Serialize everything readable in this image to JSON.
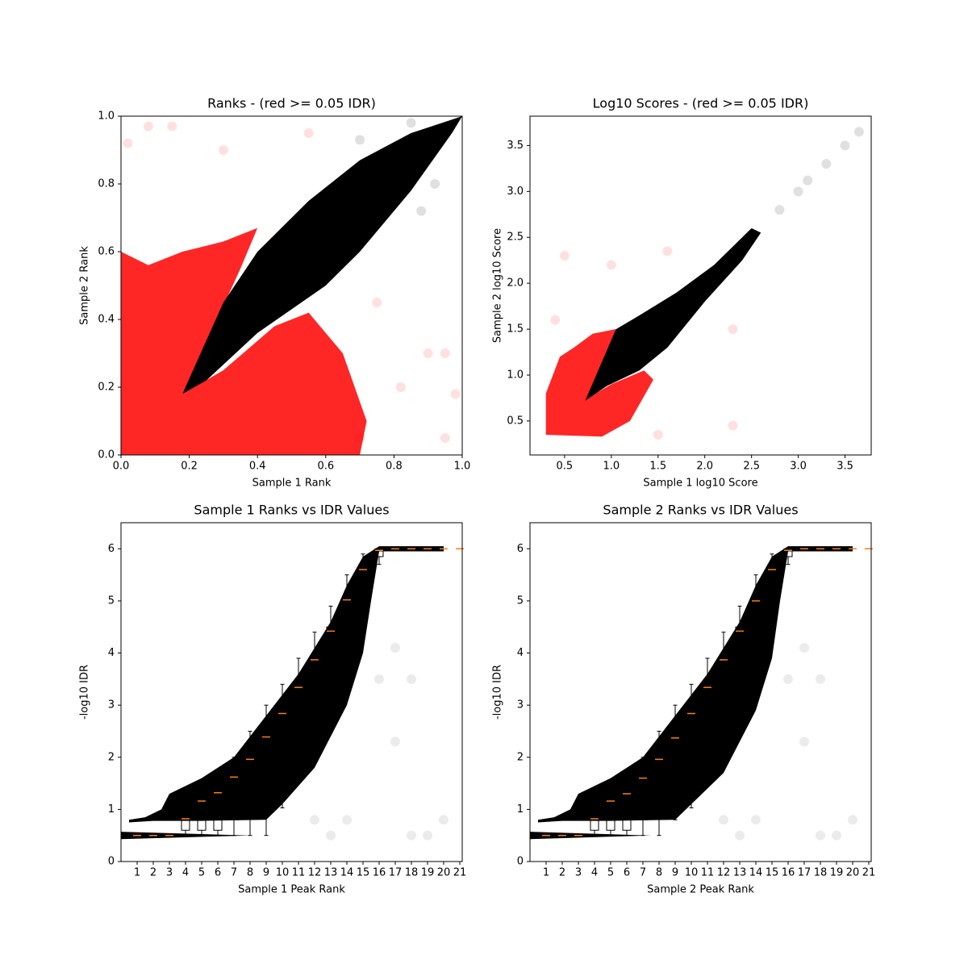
{
  "chart_data": [
    {
      "type": "scatter",
      "title": "Ranks - (red >= 0.05 IDR)",
      "xlabel": "Sample 1 Rank",
      "ylabel": "Sample 2 Rank",
      "xlim": [
        0,
        1
      ],
      "ylim": [
        0,
        1
      ],
      "xticks": [
        {
          "value": 0,
          "label": "0.0"
        },
        0.2,
        0.4,
        0.6,
        0.8,
        {
          "value": 1,
          "label": "1.0"
        }
      ],
      "yticks": [
        {
          "value": 0,
          "label": "0.0"
        },
        0.2,
        0.4,
        0.6,
        0.8,
        {
          "value": 1,
          "label": "1.0"
        }
      ],
      "regions": [
        {
          "color": "#ff0000",
          "alpha": 0.85,
          "x": [
            0,
            0,
            0.08,
            0.18,
            0.3,
            0.4,
            0.35,
            0.25,
            0.18,
            0.3,
            0.45,
            0.55,
            0.65,
            0.72,
            0.7
          ],
          "y": [
            0,
            0.6,
            0.56,
            0.6,
            0.63,
            0.67,
            0.55,
            0.33,
            0.18,
            0.25,
            0.38,
            0.42,
            0.3,
            0.1,
            0
          ]
        },
        {
          "color": "#000000",
          "alpha": 1,
          "x": [
            0.18,
            0.3,
            0.4,
            0.55,
            0.7,
            0.85,
            0.97,
            1,
            0.97,
            0.85,
            0.7,
            0.6,
            0.4,
            0.25
          ],
          "y": [
            0.18,
            0.45,
            0.6,
            0.75,
            0.87,
            0.95,
            0.99,
            1,
            0.95,
            0.78,
            0.6,
            0.5,
            0.36,
            0.22
          ]
        }
      ],
      "points": [
        {
          "color": "#ff0000",
          "alpha": 0.12,
          "x": [
            0.02,
            0.08,
            0.15,
            0.3,
            0.55,
            0.82,
            0.9,
            0.95,
            0.95,
            0.98,
            0.7,
            0.75
          ],
          "y": [
            0.92,
            0.97,
            0.97,
            0.9,
            0.95,
            0.2,
            0.3,
            0.3,
            0.05,
            0.18,
            0.05,
            0.45
          ]
        },
        {
          "color": "#000000",
          "alpha": 0.12,
          "x": [
            0.88,
            0.92,
            0.85,
            0.7
          ],
          "y": [
            0.72,
            0.8,
            0.98,
            0.93
          ]
        }
      ]
    },
    {
      "type": "scatter",
      "title": "Log10 Scores - (red >= 0.05 IDR)",
      "xlabel": "Sample 1 log10 Score",
      "ylabel": "Sample 2 log10 Score",
      "xlim": [
        0.13,
        3.78
      ],
      "ylim": [
        0.13,
        3.82
      ],
      "xticks": [
        0.5,
        {
          "value": 1,
          "label": "1.0"
        },
        1.5,
        {
          "value": 2,
          "label": "2.0"
        },
        2.5,
        {
          "value": 3,
          "label": "3.0"
        },
        3.5
      ],
      "yticks": [
        0.5,
        {
          "value": 1,
          "label": "1.0"
        },
        1.5,
        {
          "value": 2,
          "label": "2.0"
        },
        2.5,
        {
          "value": 3,
          "label": "3.0"
        },
        3.5
      ],
      "regions": [
        {
          "color": "#ff0000",
          "alpha": 0.85,
          "x": [
            0.3,
            0.3,
            0.45,
            0.6,
            0.8,
            1.05,
            1.05,
            0.75,
            1.0,
            1.35,
            1.45,
            1.2,
            0.9
          ],
          "y": [
            0.35,
            0.8,
            1.2,
            1.3,
            1.45,
            1.5,
            1.1,
            0.75,
            0.9,
            1.05,
            0.95,
            0.5,
            0.33
          ]
        },
        {
          "color": "#000000",
          "alpha": 1,
          "x": [
            0.72,
            1.05,
            1.3,
            1.7,
            2.1,
            2.5,
            2.6,
            2.4,
            2.0,
            1.6,
            1.3,
            0.95
          ],
          "y": [
            0.72,
            1.5,
            1.65,
            1.9,
            2.2,
            2.6,
            2.55,
            2.25,
            1.8,
            1.3,
            1.05,
            0.88
          ]
        }
      ],
      "points": [
        {
          "color": "#ff0000",
          "alpha": 0.12,
          "x": [
            0.5,
            1.0,
            1.6,
            2.3,
            2.3,
            1.5,
            0.4
          ],
          "y": [
            2.3,
            2.2,
            2.35,
            1.5,
            0.45,
            0.35,
            1.6
          ]
        },
        {
          "color": "#000000",
          "alpha": 0.12,
          "x": [
            2.8,
            3.0,
            3.1,
            3.3,
            3.5,
            3.65
          ],
          "y": [
            2.8,
            3.0,
            3.12,
            3.3,
            3.5,
            3.65
          ]
        }
      ]
    },
    {
      "type": "box",
      "title": "Sample 1 Ranks vs IDR Values",
      "xlabel": "Sample 1 Peak Rank",
      "ylabel": "-log10 IDR",
      "xlim": [
        0,
        21.15
      ],
      "ylim": [
        0,
        6.5
      ],
      "xticks": [
        1,
        2,
        3,
        4,
        5,
        6,
        7,
        8,
        9,
        10,
        11,
        12,
        13,
        14,
        15,
        16,
        17,
        18,
        19,
        20,
        21
      ],
      "yticks": [
        0,
        1,
        2,
        3,
        4,
        5,
        6
      ],
      "regions": [
        {
          "color": "#000000",
          "alpha": 1,
          "x": [
            0.5,
            1.5,
            2.5,
            3,
            5,
            7,
            9,
            11,
            13,
            14,
            15,
            16,
            20,
            20,
            16,
            15.5,
            15,
            14,
            12,
            10,
            9,
            5,
            2,
            0.5
          ],
          "y": [
            0.8,
            0.85,
            1.0,
            1.3,
            1.6,
            2.0,
            2.8,
            3.6,
            4.6,
            5.3,
            5.85,
            6.05,
            6.05,
            5.95,
            5.95,
            5.0,
            4.0,
            3.0,
            1.8,
            1.1,
            0.8,
            0.78,
            0.78,
            0.75
          ]
        },
        {
          "color": "#000000",
          "alpha": 1,
          "x": [
            0,
            8,
            0
          ],
          "y": [
            0.43,
            0.5,
            0.57
          ]
        }
      ],
      "points": [
        {
          "color": "#000000",
          "alpha": 0.08,
          "x": [
            18,
            19,
            20,
            17,
            16,
            18,
            17,
            14,
            13,
            12
          ],
          "y": [
            0.5,
            0.5,
            0.8,
            2.3,
            3.5,
            3.5,
            4.1,
            0.8,
            0.5,
            0.8
          ]
        }
      ],
      "box_color": "#000000",
      "median_color": "#ff7f0e",
      "boxes": {
        "positions": [
          1,
          2,
          3,
          4,
          5,
          6,
          7,
          8,
          9,
          10,
          11,
          12,
          13,
          14,
          15,
          16,
          17,
          18,
          19,
          20,
          21
        ],
        "whislo": [
          0.5,
          0.5,
          0.5,
          0.5,
          0.5,
          0.5,
          0.5,
          0.5,
          0.5,
          1.03,
          1.72,
          2.38,
          3.13,
          3.93,
          4.72,
          5.7,
          6,
          6,
          6,
          6,
          6
        ],
        "q1": [
          0.5,
          0.5,
          0.5,
          0.6,
          0.6,
          0.6,
          0.8,
          1.32,
          1.78,
          2.25,
          2.82,
          3.4,
          4.05,
          4.7,
          5.35,
          5.85,
          6,
          6,
          6,
          6,
          6
        ],
        "med": [
          0.5,
          0.5,
          0.5,
          0.82,
          1.16,
          1.32,
          1.62,
          1.96,
          2.39,
          2.84,
          3.34,
          3.87,
          4.42,
          5.02,
          5.6,
          5.97,
          6,
          6,
          6,
          6,
          6
        ],
        "q3": [
          0.5,
          0.5,
          0.5,
          0.85,
          1.2,
          1.4,
          1.7,
          2.1,
          2.5,
          2.95,
          3.45,
          3.95,
          4.5,
          5.1,
          5.7,
          6,
          6,
          6,
          6,
          6,
          6
        ],
        "whishi": [
          0.5,
          0.5,
          0.5,
          0.9,
          1.3,
          1.6,
          2.0,
          2.5,
          3.0,
          3.4,
          3.9,
          4.4,
          4.9,
          5.5,
          5.9,
          6,
          6,
          6,
          6,
          6,
          6
        ]
      }
    },
    {
      "type": "box",
      "title": "Sample 2 Ranks vs IDR Values",
      "xlabel": "Sample 2 Peak Rank",
      "ylabel": "-log10 IDR",
      "xlim": [
        0,
        21.15
      ],
      "ylim": [
        0,
        6.5
      ],
      "xticks": [
        1,
        2,
        3,
        4,
        5,
        6,
        7,
        8,
        9,
        10,
        11,
        12,
        13,
        14,
        15,
        16,
        17,
        18,
        19,
        20,
        21
      ],
      "yticks": [
        0,
        1,
        2,
        3,
        4,
        5,
        6
      ],
      "regions": [
        {
          "color": "#000000",
          "alpha": 1,
          "x": [
            0.5,
            1.5,
            2.5,
            3,
            5,
            7,
            9,
            11,
            13,
            14,
            15,
            16,
            20,
            20,
            16,
            15.5,
            15,
            14,
            12,
            10,
            9,
            5,
            2,
            0.5
          ],
          "y": [
            0.8,
            0.85,
            1.0,
            1.3,
            1.6,
            2.0,
            2.8,
            3.6,
            4.6,
            5.3,
            5.85,
            6.05,
            6.05,
            5.95,
            5.95,
            5.0,
            3.9,
            2.9,
            1.7,
            1.1,
            0.8,
            0.78,
            0.78,
            0.75
          ]
        },
        {
          "color": "#000000",
          "alpha": 1,
          "x": [
            0,
            7.5,
            0
          ],
          "y": [
            0.43,
            0.5,
            0.57
          ]
        }
      ],
      "points": [
        {
          "color": "#000000",
          "alpha": 0.08,
          "x": [
            18,
            19,
            20,
            17,
            16,
            18,
            17,
            14,
            13,
            12
          ],
          "y": [
            0.5,
            0.5,
            0.8,
            2.3,
            3.5,
            3.5,
            4.1,
            0.8,
            0.5,
            0.8
          ]
        }
      ],
      "box_color": "#000000",
      "median_color": "#ff7f0e",
      "boxes": {
        "positions": [
          1,
          2,
          3,
          4,
          5,
          6,
          7,
          8,
          9,
          10,
          11,
          12,
          13,
          14,
          15,
          16,
          17,
          18,
          19,
          20,
          21
        ],
        "whislo": [
          0.5,
          0.5,
          0.5,
          0.5,
          0.5,
          0.5,
          0.5,
          0.5,
          0.8,
          1.03,
          1.72,
          2.3,
          3.13,
          3.85,
          4.72,
          5.7,
          6,
          6,
          6,
          6,
          6
        ],
        "q1": [
          0.5,
          0.5,
          0.5,
          0.6,
          0.6,
          0.6,
          0.8,
          1.32,
          1.78,
          2.25,
          2.82,
          3.4,
          4.05,
          4.7,
          5.35,
          5.85,
          6,
          6,
          6,
          6,
          6
        ],
        "med": [
          0.5,
          0.5,
          0.5,
          0.82,
          1.16,
          1.3,
          1.6,
          1.96,
          2.37,
          2.84,
          3.34,
          3.87,
          4.42,
          5.0,
          5.6,
          5.97,
          6,
          6,
          6,
          6,
          6
        ],
        "q3": [
          0.5,
          0.5,
          0.5,
          0.85,
          1.2,
          1.4,
          1.7,
          2.1,
          2.5,
          2.95,
          3.45,
          3.95,
          4.5,
          5.1,
          5.7,
          6,
          6,
          6,
          6,
          6,
          6
        ],
        "whishi": [
          0.5,
          0.5,
          0.5,
          0.9,
          1.3,
          1.6,
          2.0,
          2.5,
          3.0,
          3.4,
          3.9,
          4.4,
          4.9,
          5.5,
          5.9,
          6,
          6,
          6,
          6,
          6,
          6
        ]
      }
    }
  ]
}
